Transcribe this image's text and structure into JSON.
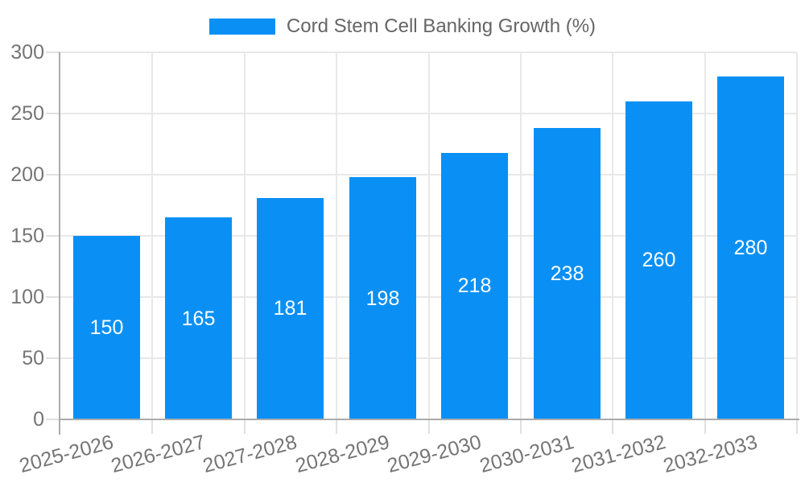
{
  "chart_data": {
    "type": "bar",
    "title": "Cord Stem Cell Banking Growth (%)",
    "categories": [
      "2025-2026",
      "2026-2027",
      "2027-2028",
      "2028-2029",
      "2029-2030",
      "2030-2031",
      "2031-2032",
      "2032-2033"
    ],
    "values": [
      150,
      165,
      181,
      198,
      218,
      238,
      260,
      280
    ],
    "bar_value_labels": [
      "150",
      "165",
      "181",
      "198",
      "218",
      "238",
      "260",
      "280"
    ],
    "xlabel": "",
    "ylabel": "",
    "ylim": [
      0,
      300
    ],
    "yticks": [
      0,
      50,
      100,
      150,
      200,
      250,
      300
    ],
    "ytick_labels": [
      "0",
      "50",
      "100",
      "150",
      "200",
      "250",
      "300"
    ],
    "grid": true,
    "legend_position": "top-center",
    "x_tick_label_rotation_deg": 15,
    "colors": {
      "bar": "#0a90f5",
      "bar_value_text": "#ffffff",
      "grid": "#e8e8e8",
      "tick": "#e0e0e0",
      "axis": "#ababab",
      "tick_text": "#757575",
      "legend_text": "#666666",
      "background": "#ffffff"
    }
  }
}
